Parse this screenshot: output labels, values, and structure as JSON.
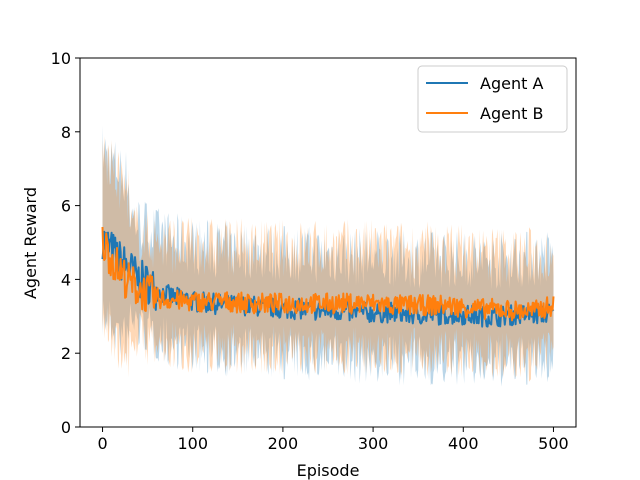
{
  "chart_data": {
    "type": "line",
    "title": "",
    "xlabel": "Episode",
    "ylabel": "Agent Reward",
    "xlim": [
      -25,
      525
    ],
    "ylim": [
      0,
      10
    ],
    "x_ticks": [
      0,
      100,
      200,
      300,
      400,
      500
    ],
    "y_ticks": [
      0,
      2,
      4,
      6,
      8,
      10
    ],
    "grid": false,
    "legend_position": "top-right",
    "band": "shaded band of roughly ±1.5 around each series mean",
    "series": [
      {
        "name": "Agent A",
        "color": "#1f77b4",
        "x": [
          0,
          10,
          20,
          30,
          40,
          50,
          60,
          70,
          80,
          90,
          100,
          120,
          140,
          160,
          180,
          200,
          220,
          240,
          260,
          280,
          300,
          320,
          340,
          360,
          380,
          400,
          420,
          440,
          460,
          480,
          500
        ],
        "values": [
          5.1,
          4.8,
          4.5,
          4.3,
          4.0,
          3.9,
          3.7,
          3.6,
          3.5,
          3.5,
          3.4,
          3.35,
          3.3,
          3.3,
          3.25,
          3.2,
          3.2,
          3.15,
          3.15,
          3.1,
          3.1,
          3.1,
          3.05,
          3.05,
          3.05,
          3.05,
          3.0,
          3.0,
          3.05,
          3.05,
          3.1
        ]
      },
      {
        "name": "Agent B",
        "color": "#ff7f0e",
        "x": [
          0,
          10,
          20,
          30,
          40,
          50,
          60,
          70,
          80,
          90,
          100,
          120,
          140,
          160,
          180,
          200,
          220,
          240,
          260,
          280,
          300,
          320,
          340,
          360,
          380,
          400,
          420,
          440,
          460,
          480,
          500
        ],
        "values": [
          5.0,
          4.6,
          4.2,
          3.9,
          3.75,
          3.6,
          3.5,
          3.45,
          3.45,
          3.4,
          3.4,
          3.4,
          3.4,
          3.35,
          3.35,
          3.35,
          3.35,
          3.35,
          3.35,
          3.35,
          3.35,
          3.3,
          3.3,
          3.3,
          3.3,
          3.25,
          3.2,
          3.2,
          3.15,
          3.15,
          3.3
        ]
      }
    ]
  }
}
